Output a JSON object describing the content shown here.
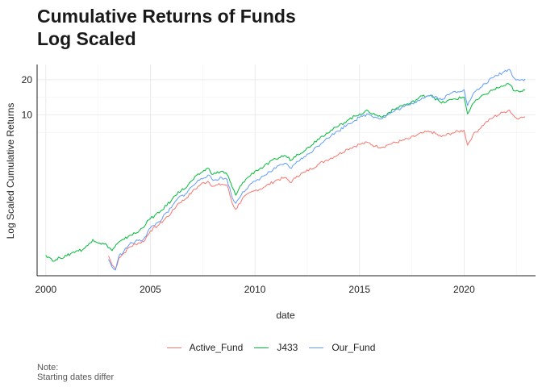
{
  "chart_data": {
    "type": "line",
    "title": [
      "Cumulative Returns of Funds",
      "Log Scaled"
    ],
    "xlabel": "date",
    "ylabel": "Log Scaled Cumulative Returns",
    "y_scale": "log",
    "xlim": [
      "1999-08-01",
      "2023-06-01"
    ],
    "ylim": [
      0.42,
      27
    ],
    "x_ticks": [
      2000,
      2005,
      2010,
      2015,
      2020
    ],
    "y_ticks": [
      10,
      20
    ],
    "grid": true,
    "legend_position": "bottom",
    "series": [
      {
        "name": "Active_Fund",
        "color": "#F8766D",
        "points": [
          [
            "2003-01-01",
            0.62
          ],
          [
            "2003-03-01",
            0.52
          ],
          [
            "2003-05-01",
            0.48
          ],
          [
            "2003-07-01",
            0.6
          ],
          [
            "2003-10-01",
            0.66
          ],
          [
            "2004-01-01",
            0.74
          ],
          [
            "2004-06-01",
            0.8
          ],
          [
            "2004-09-01",
            0.82
          ],
          [
            "2005-01-01",
            1.02
          ],
          [
            "2005-06-01",
            1.15
          ],
          [
            "2006-01-01",
            1.45
          ],
          [
            "2006-05-01",
            1.75
          ],
          [
            "2006-09-01",
            1.9
          ],
          [
            "2007-01-01",
            2.2
          ],
          [
            "2007-06-01",
            2.55
          ],
          [
            "2007-10-01",
            2.7
          ],
          [
            "2008-01-01",
            2.45
          ],
          [
            "2008-06-01",
            2.55
          ],
          [
            "2008-09-01",
            2.5
          ],
          [
            "2008-12-01",
            1.75
          ],
          [
            "2009-02-01",
            1.55
          ],
          [
            "2009-06-01",
            1.95
          ],
          [
            "2010-01-01",
            2.25
          ],
          [
            "2010-06-01",
            2.4
          ],
          [
            "2011-01-01",
            2.75
          ],
          [
            "2011-06-01",
            2.9
          ],
          [
            "2011-10-01",
            2.65
          ],
          [
            "2012-01-01",
            3.0
          ],
          [
            "2012-06-01",
            3.25
          ],
          [
            "2013-01-01",
            3.75
          ],
          [
            "2013-06-01",
            4.1
          ],
          [
            "2014-01-01",
            4.6
          ],
          [
            "2014-06-01",
            5.1
          ],
          [
            "2015-01-01",
            5.6
          ],
          [
            "2015-06-01",
            5.8
          ],
          [
            "2015-10-01",
            5.4
          ],
          [
            "2016-02-01",
            5.3
          ],
          [
            "2016-06-01",
            5.6
          ],
          [
            "2017-01-01",
            6.0
          ],
          [
            "2017-06-01",
            6.3
          ],
          [
            "2018-01-01",
            7.0
          ],
          [
            "2018-06-01",
            7.2
          ],
          [
            "2018-12-01",
            6.5
          ],
          [
            "2019-06-01",
            7.0
          ],
          [
            "2020-01-01",
            7.4
          ],
          [
            "2020-03-01",
            5.5
          ],
          [
            "2020-06-01",
            6.7
          ],
          [
            "2021-01-01",
            8.5
          ],
          [
            "2021-06-01",
            9.6
          ],
          [
            "2021-12-01",
            10.6
          ],
          [
            "2022-03-01",
            11.0
          ],
          [
            "2022-06-01",
            9.6
          ],
          [
            "2022-09-01",
            9.4
          ],
          [
            "2022-12-01",
            9.6
          ]
        ]
      },
      {
        "name": "J433",
        "color": "#00BA38",
        "points": [
          [
            "2000-01-01",
            0.63
          ],
          [
            "2000-04-01",
            0.59
          ],
          [
            "2000-06-01",
            0.56
          ],
          [
            "2000-09-01",
            0.6
          ],
          [
            "2001-01-01",
            0.62
          ],
          [
            "2001-04-01",
            0.66
          ],
          [
            "2001-07-01",
            0.69
          ],
          [
            "2001-10-01",
            0.7
          ],
          [
            "2002-01-01",
            0.76
          ],
          [
            "2002-04-01",
            0.86
          ],
          [
            "2002-08-01",
            0.8
          ],
          [
            "2002-12-01",
            0.77
          ],
          [
            "2003-03-01",
            0.69
          ],
          [
            "2003-06-01",
            0.79
          ],
          [
            "2003-10-01",
            0.86
          ],
          [
            "2004-01-01",
            0.93
          ],
          [
            "2004-06-01",
            0.99
          ],
          [
            "2005-01-01",
            1.3
          ],
          [
            "2005-06-01",
            1.45
          ],
          [
            "2006-01-01",
            1.85
          ],
          [
            "2006-05-01",
            2.2
          ],
          [
            "2006-09-01",
            2.35
          ],
          [
            "2007-01-01",
            2.75
          ],
          [
            "2007-06-01",
            3.2
          ],
          [
            "2007-10-01",
            3.5
          ],
          [
            "2008-01-01",
            3.1
          ],
          [
            "2008-06-01",
            3.3
          ],
          [
            "2008-09-01",
            3.1
          ],
          [
            "2008-12-01",
            2.4
          ],
          [
            "2009-02-01",
            2.05
          ],
          [
            "2009-06-01",
            2.65
          ],
          [
            "2010-01-01",
            3.3
          ],
          [
            "2010-06-01",
            3.6
          ],
          [
            "2011-01-01",
            4.2
          ],
          [
            "2011-06-01",
            4.5
          ],
          [
            "2011-10-01",
            4.1
          ],
          [
            "2012-01-01",
            4.6
          ],
          [
            "2012-06-01",
            5.0
          ],
          [
            "2013-01-01",
            6.2
          ],
          [
            "2013-06-01",
            7.0
          ],
          [
            "2014-01-01",
            8.0
          ],
          [
            "2014-06-01",
            9.0
          ],
          [
            "2015-01-01",
            10.2
          ],
          [
            "2015-06-01",
            10.8
          ],
          [
            "2015-10-01",
            10.0
          ],
          [
            "2016-02-01",
            9.6
          ],
          [
            "2016-06-01",
            10.5
          ],
          [
            "2017-01-01",
            12.0
          ],
          [
            "2017-06-01",
            12.5
          ],
          [
            "2018-01-01",
            14.5
          ],
          [
            "2018-06-01",
            14.8
          ],
          [
            "2018-12-01",
            12.6
          ],
          [
            "2019-06-01",
            13.5
          ],
          [
            "2020-01-01",
            14.2
          ],
          [
            "2020-03-01",
            10.2
          ],
          [
            "2020-06-01",
            12.5
          ],
          [
            "2021-01-01",
            15.0
          ],
          [
            "2021-06-01",
            16.5
          ],
          [
            "2021-12-01",
            17.8
          ],
          [
            "2022-03-01",
            18.3
          ],
          [
            "2022-06-01",
            16.0
          ],
          [
            "2022-09-01",
            15.7
          ],
          [
            "2022-12-01",
            16.2
          ]
        ]
      },
      {
        "name": "Our_Fund",
        "color": "#619CFF",
        "points": [
          [
            "2003-01-01",
            0.58
          ],
          [
            "2003-03-01",
            0.5
          ],
          [
            "2003-05-01",
            0.47
          ],
          [
            "2003-07-01",
            0.62
          ],
          [
            "2003-10-01",
            0.69
          ],
          [
            "2004-01-01",
            0.78
          ],
          [
            "2004-06-01",
            0.84
          ],
          [
            "2004-09-01",
            0.86
          ],
          [
            "2005-01-01",
            1.08
          ],
          [
            "2005-06-01",
            1.22
          ],
          [
            "2006-01-01",
            1.6
          ],
          [
            "2006-05-01",
            1.95
          ],
          [
            "2006-09-01",
            2.1
          ],
          [
            "2007-01-01",
            2.45
          ],
          [
            "2007-06-01",
            2.85
          ],
          [
            "2007-10-01",
            3.05
          ],
          [
            "2008-01-01",
            2.75
          ],
          [
            "2008-06-01",
            2.9
          ],
          [
            "2008-09-01",
            2.8
          ],
          [
            "2008-12-01",
            1.95
          ],
          [
            "2009-02-01",
            1.75
          ],
          [
            "2009-06-01",
            2.2
          ],
          [
            "2010-01-01",
            2.7
          ],
          [
            "2010-06-01",
            3.0
          ],
          [
            "2011-01-01",
            3.5
          ],
          [
            "2011-06-01",
            3.85
          ],
          [
            "2011-10-01",
            3.5
          ],
          [
            "2012-01-01",
            4.0
          ],
          [
            "2012-06-01",
            4.4
          ],
          [
            "2013-01-01",
            5.4
          ],
          [
            "2013-06-01",
            6.3
          ],
          [
            "2014-01-01",
            7.3
          ],
          [
            "2014-06-01",
            8.3
          ],
          [
            "2015-01-01",
            9.5
          ],
          [
            "2015-06-01",
            10.2
          ],
          [
            "2015-10-01",
            9.6
          ],
          [
            "2016-02-01",
            9.3
          ],
          [
            "2016-06-01",
            10.2
          ],
          [
            "2017-01-01",
            11.5
          ],
          [
            "2017-06-01",
            12.2
          ],
          [
            "2018-01-01",
            14.0
          ],
          [
            "2018-06-01",
            14.8
          ],
          [
            "2018-12-01",
            13.5
          ],
          [
            "2019-06-01",
            15.5
          ],
          [
            "2020-01-01",
            16.5
          ],
          [
            "2020-03-01",
            12.0
          ],
          [
            "2020-06-01",
            15.0
          ],
          [
            "2021-01-01",
            18.5
          ],
          [
            "2021-06-01",
            21.0
          ],
          [
            "2021-12-01",
            23.5
          ],
          [
            "2022-03-01",
            24.5
          ],
          [
            "2022-06-01",
            20.5
          ],
          [
            "2022-09-01",
            19.8
          ],
          [
            "2022-12-01",
            20.3
          ]
        ]
      }
    ],
    "note": [
      "Note:",
      "Starting dates differ"
    ]
  }
}
